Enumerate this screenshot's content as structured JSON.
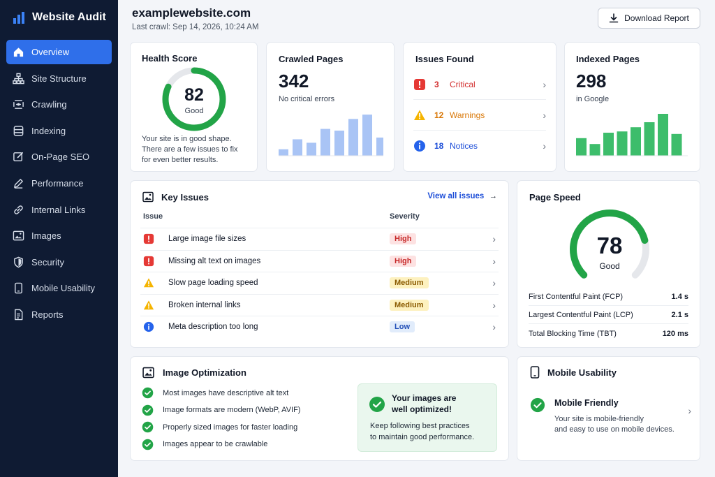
{
  "sidebar": {
    "title": "Website Audit",
    "items": [
      {
        "label": "Overview",
        "icon": "home-icon"
      },
      {
        "label": "Site Structure",
        "icon": "sitemap-icon"
      },
      {
        "label": "Crawling",
        "icon": "crawl-icon"
      },
      {
        "label": "Indexing",
        "icon": "database-icon"
      },
      {
        "label": "On-Page SEO",
        "icon": "edit-icon"
      },
      {
        "label": "Performance",
        "icon": "pen-icon"
      },
      {
        "label": "Internal Links",
        "icon": "link-icon"
      },
      {
        "label": "Images",
        "icon": "image-icon"
      },
      {
        "label": "Security",
        "icon": "shield-icon"
      },
      {
        "label": "Mobile Usability",
        "icon": "mobile-icon"
      },
      {
        "label": "Reports",
        "icon": "document-icon"
      }
    ]
  },
  "header": {
    "site": "examplewebsite.com",
    "last_crawl": "Last crawl: Sep 14, 2026, 10:24 AM",
    "download_label": "Download Report"
  },
  "health": {
    "title": "Health Score",
    "score": "82",
    "status": "Good",
    "progress": 0.82,
    "desc1": "Your site is in good shape.",
    "desc2": "There are a few issues to fix",
    "desc3": "for even better results."
  },
  "crawled": {
    "title": "Crawled Pages",
    "value": "342",
    "sub": "No critical errors",
    "bars": [
      0.15,
      0.38,
      0.3,
      0.62,
      0.58,
      0.85,
      0.95,
      0.42
    ]
  },
  "issues": {
    "title": "Issues Found",
    "rows": [
      {
        "count": "3",
        "label": "Critical",
        "color": "#d32f2f"
      },
      {
        "count": "12",
        "label": "Warnings",
        "color": "#d97706"
      },
      {
        "count": "18",
        "label": "Notices",
        "color": "#1d4ed8"
      }
    ]
  },
  "indexed": {
    "title": "Indexed Pages",
    "value": "298",
    "sub": "in Google",
    "bars": [
      0.42,
      0.28,
      0.55,
      0.58,
      0.68,
      0.8,
      1.0,
      0.52
    ]
  },
  "key_issues": {
    "title": "Key Issues",
    "view_all": "View all issues",
    "col_issue": "Issue",
    "col_severity": "Severity",
    "rows": [
      {
        "name": "Large image file sizes",
        "severity": "High",
        "type": "critical"
      },
      {
        "name": "Missing alt text on images",
        "severity": "High",
        "type": "critical"
      },
      {
        "name": "Slow page loading speed",
        "severity": "Medium",
        "type": "warning"
      },
      {
        "name": "Broken internal links",
        "severity": "Medium",
        "type": "warning"
      },
      {
        "name": "Meta description too long",
        "severity": "Low",
        "type": "info"
      }
    ]
  },
  "page_speed": {
    "title": "Page Speed",
    "score": "78",
    "status": "Good",
    "progress": 0.78,
    "metrics": [
      {
        "label": "First Contentful Paint (FCP)",
        "value": "1.4 s"
      },
      {
        "label": "Largest Contentful Paint (LCP)",
        "value": "2.1 s"
      },
      {
        "label": "Total Blocking Time (TBT)",
        "value": "120 ms"
      }
    ]
  },
  "image_opt": {
    "title": "Image Optimization",
    "checks": [
      "Most images have descriptive alt text",
      "Image formats are modern (WebP, AVIF)",
      "Properly sized images for faster loading",
      "Images appear to be crawlable"
    ],
    "callout_title1": "Your images are",
    "callout_title2": "well optimized!",
    "callout_text1": "Keep following best practices",
    "callout_text2": "to maintain good performance."
  },
  "mobile": {
    "title": "Mobile Usability",
    "status": "Mobile Friendly",
    "desc1": "Your site is mobile-friendly",
    "desc2": "and easy to use on mobile devices."
  },
  "colors": {
    "accent": "#2f6fea",
    "sidebar": "#0f1b33",
    "good": "#22a447",
    "bar_blue": "#a9c4f5",
    "bar_green": "#3dbd6b"
  }
}
